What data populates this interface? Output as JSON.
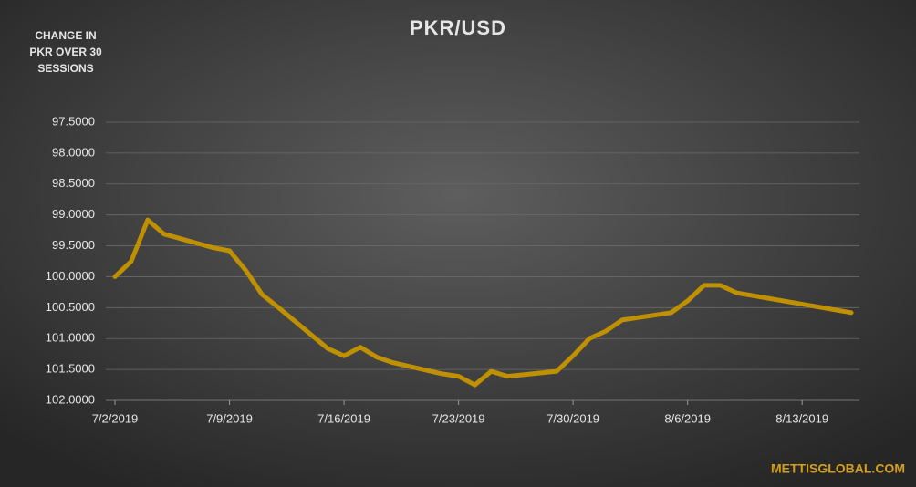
{
  "chart_data": {
    "type": "line",
    "title": "PKR/USD",
    "y_label_lines": [
      "CHANGE IN",
      "PKR OVER 30",
      "SESSIONS"
    ],
    "watermark": "METTISGLOBAL.COM",
    "x": [
      "7/2/2019",
      "7/3/2019",
      "7/4/2019",
      "7/5/2019",
      "7/8/2019",
      "7/9/2019",
      "7/10/2019",
      "7/11/2019",
      "7/12/2019",
      "7/15/2019",
      "7/16/2019",
      "7/17/2019",
      "7/18/2019",
      "7/19/2019",
      "7/22/2019",
      "7/23/2019",
      "7/24/2019",
      "7/25/2019",
      "7/26/2019",
      "7/29/2019",
      "7/30/2019",
      "7/31/2019",
      "8/1/2019",
      "8/2/2019",
      "8/5/2019",
      "8/6/2019",
      "8/7/2019",
      "8/8/2019",
      "8/9/2019",
      "8/16/2019"
    ],
    "values": [
      100.0,
      99.75,
      99.08,
      99.31,
      99.53,
      99.58,
      99.9,
      100.29,
      100.5,
      101.16,
      101.28,
      101.14,
      101.3,
      101.39,
      101.57,
      101.61,
      101.75,
      101.53,
      101.61,
      101.53,
      101.28,
      101.0,
      100.88,
      100.7,
      100.58,
      100.39,
      100.14,
      100.14,
      100.26,
      100.58
    ],
    "color": "#bf9000",
    "xlim": [
      "7/2/2019",
      "8/16/2019"
    ],
    "xticks": [
      "7/2/2019",
      "7/9/2019",
      "7/16/2019",
      "7/23/2019",
      "7/30/2019",
      "8/6/2019",
      "8/13/2019"
    ],
    "ylim": [
      97.5,
      102
    ],
    "y_inverted": true,
    "yticks": [
      {
        "value": 97.5,
        "label": "97.5000"
      },
      {
        "value": 98,
        "label": "98.0000"
      },
      {
        "value": 98.5,
        "label": "98.5000"
      },
      {
        "value": 99,
        "label": "99.0000"
      },
      {
        "value": 99.5,
        "label": "99.5000"
      },
      {
        "value": 100,
        "label": "100.0000"
      },
      {
        "value": 100.5,
        "label": "100.5000"
      },
      {
        "value": 101,
        "label": "101.0000"
      },
      {
        "value": 101.5,
        "label": "101.5000"
      },
      {
        "value": 102,
        "label": "102.0000"
      }
    ],
    "grid": true
  }
}
